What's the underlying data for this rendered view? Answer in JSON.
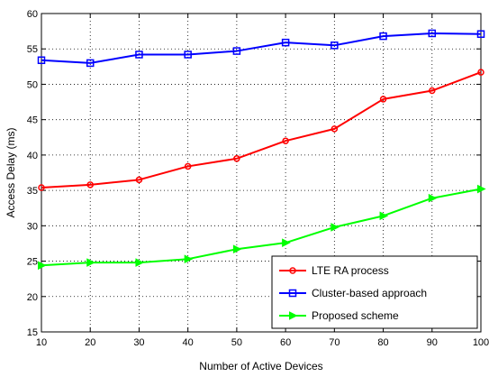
{
  "chart_data": {
    "type": "line",
    "title": "",
    "xlabel": "Number of Active Devices",
    "ylabel": "Access Delay (ms)",
    "xlim": [
      10,
      100
    ],
    "ylim": [
      15,
      60
    ],
    "x": [
      10,
      20,
      30,
      40,
      50,
      60,
      70,
      80,
      90,
      100
    ],
    "x_ticks": [
      "10",
      "20",
      "30",
      "40",
      "50",
      "60",
      "70",
      "80",
      "90",
      "100"
    ],
    "y_ticks": [
      "15",
      "20",
      "25",
      "30",
      "35",
      "40",
      "45",
      "50",
      "55",
      "60"
    ],
    "grid": true,
    "legend_position": "bottom-right",
    "series": [
      {
        "name": "LTE RA process",
        "color": "#ff0000",
        "marker": "circle",
        "values": [
          35.4,
          35.8,
          36.5,
          38.4,
          39.5,
          42.0,
          43.7,
          47.9,
          49.1,
          51.7
        ]
      },
      {
        "name": "Cluster-based approach",
        "color": "#0000ff",
        "marker": "square",
        "values": [
          53.4,
          53.0,
          54.2,
          54.2,
          54.7,
          55.9,
          55.5,
          56.8,
          57.2,
          57.1
        ]
      },
      {
        "name": "Proposed scheme",
        "color": "#00ff00",
        "marker": "triangle-right",
        "values": [
          24.4,
          24.8,
          24.8,
          25.3,
          26.7,
          27.6,
          29.8,
          31.4,
          33.9,
          35.2
        ]
      }
    ]
  }
}
